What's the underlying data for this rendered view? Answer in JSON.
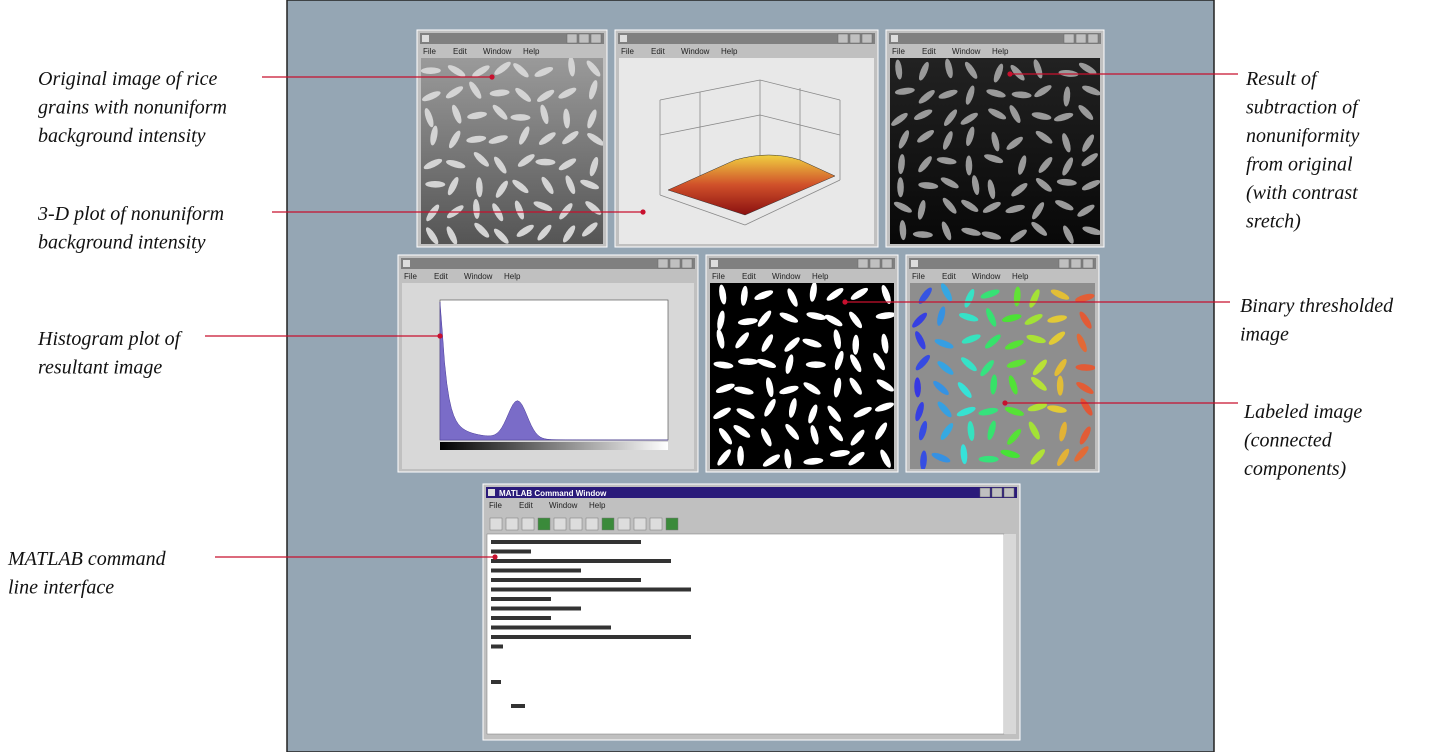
{
  "annotations": {
    "left": [
      {
        "lines": [
          "Original image of rice",
          "grains with nonuniform",
          "background intensity"
        ]
      },
      {
        "lines": [
          "3-D plot of nonuniform",
          "background intensity"
        ]
      },
      {
        "lines": [
          "Histogram plot of",
          "resultant image"
        ]
      },
      {
        "lines": [
          "MATLAB command",
          "line interface"
        ]
      }
    ],
    "right": [
      {
        "lines": [
          "Result of",
          "subtraction of",
          "nonuniformity",
          "from original",
          "(with contrast",
          "sretch)"
        ]
      },
      {
        "lines": [
          "Binary thresholded",
          "image"
        ]
      },
      {
        "lines": [
          "Labeled image",
          "(connected",
          "components)"
        ]
      }
    ]
  },
  "command_window": {
    "title": "MATLAB Command Window"
  },
  "menu": [
    "File",
    "Edit",
    "Window",
    "Help"
  ]
}
